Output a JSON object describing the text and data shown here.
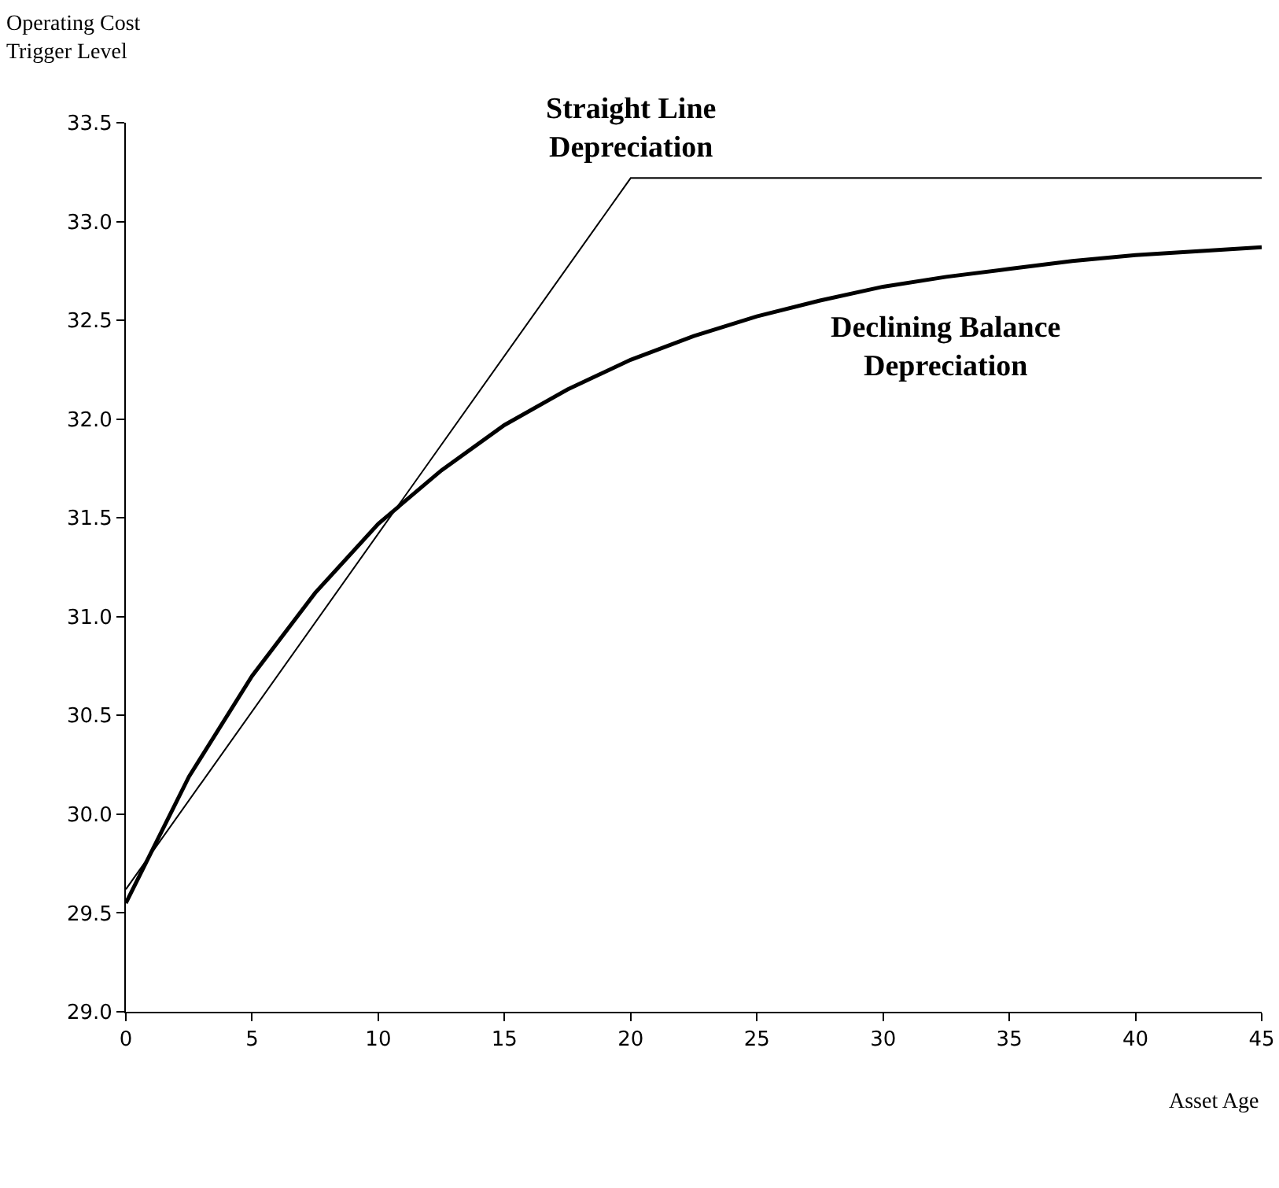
{
  "chart_data": {
    "type": "line",
    "ylabel": "Operating Cost\nTrigger Level",
    "xlabel": "Asset Age",
    "xlim": [
      0,
      45
    ],
    "xticks": [
      0,
      5,
      10,
      15,
      20,
      25,
      30,
      35,
      40,
      45
    ],
    "ylim": [
      29,
      33.5
    ],
    "yticks": [
      {
        "value": 29,
        "label": "29.0"
      },
      {
        "value": 29.5,
        "label": "29.5"
      },
      {
        "value": 30,
        "label": "30.0"
      },
      {
        "value": 30.5,
        "label": "30.5"
      },
      {
        "value": 31,
        "label": "31.0"
      },
      {
        "value": 31.5,
        "label": "31.5"
      },
      {
        "value": 32,
        "label": "32.0"
      },
      {
        "value": 32.5,
        "label": "32.5"
      },
      {
        "value": 33,
        "label": "33.0"
      },
      {
        "value": 33.5,
        "label": "33.5"
      }
    ],
    "grid": false,
    "legend": false,
    "marker": "none",
    "line_style": "solid",
    "series": [
      {
        "name": "Straight Line\nDepreciation",
        "color": "#000000",
        "x": [
          0,
          20,
          45
        ],
        "values": [
          29.62,
          33.22,
          33.22
        ]
      },
      {
        "name": "Declining Balance\nDepreciation",
        "color": "#000000",
        "x": [
          0,
          2.5,
          5,
          7.5,
          10,
          12.5,
          15,
          17.5,
          20,
          22.5,
          25,
          27.5,
          30,
          32.5,
          35,
          37.5,
          40,
          42.5,
          45
        ],
        "values": [
          29.55,
          30.19,
          30.7,
          31.12,
          31.47,
          31.74,
          31.97,
          32.15,
          32.3,
          32.42,
          32.52,
          32.6,
          32.67,
          32.72,
          32.76,
          32.8,
          32.83,
          32.85,
          32.87
        ]
      }
    ]
  }
}
